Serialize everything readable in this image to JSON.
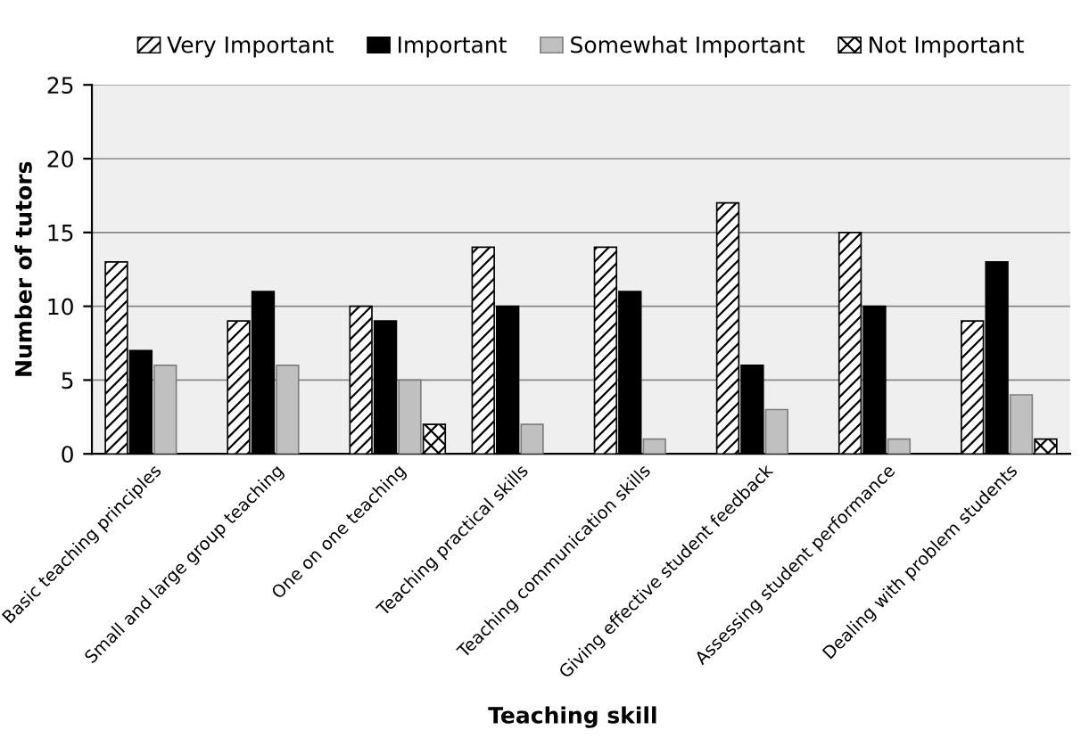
{
  "chart_data": {
    "type": "bar",
    "xlabel": "Teaching skill",
    "ylabel": "Number of tutors",
    "categories": [
      "Basic teaching principles",
      "Small and large group teaching",
      "One on one teaching",
      "Teaching practical skills",
      "Teaching communication skills",
      "Giving effective student feedback",
      "Assessing student performance",
      "Dealing with problem students"
    ],
    "series": [
      {
        "name": "Very Important",
        "color": "#000000",
        "values": [
          13,
          9,
          10,
          14,
          14,
          17,
          15,
          9
        ]
      },
      {
        "name": "Important",
        "color": "#000000",
        "values": [
          7,
          11,
          9,
          10,
          11,
          6,
          10,
          13
        ]
      },
      {
        "name": "Somewhat Important",
        "color": "#c0c0c0",
        "values": [
          6,
          6,
          5,
          2,
          1,
          3,
          1,
          4
        ]
      },
      {
        "name": "Not Important",
        "color": "#000000",
        "values": [
          0,
          0,
          2,
          0,
          0,
          0,
          0,
          1
        ]
      }
    ],
    "ylim": [
      0,
      25
    ],
    "yticks": [
      0,
      5,
      10,
      15,
      20,
      25
    ],
    "grid": "y",
    "legend": "top"
  }
}
